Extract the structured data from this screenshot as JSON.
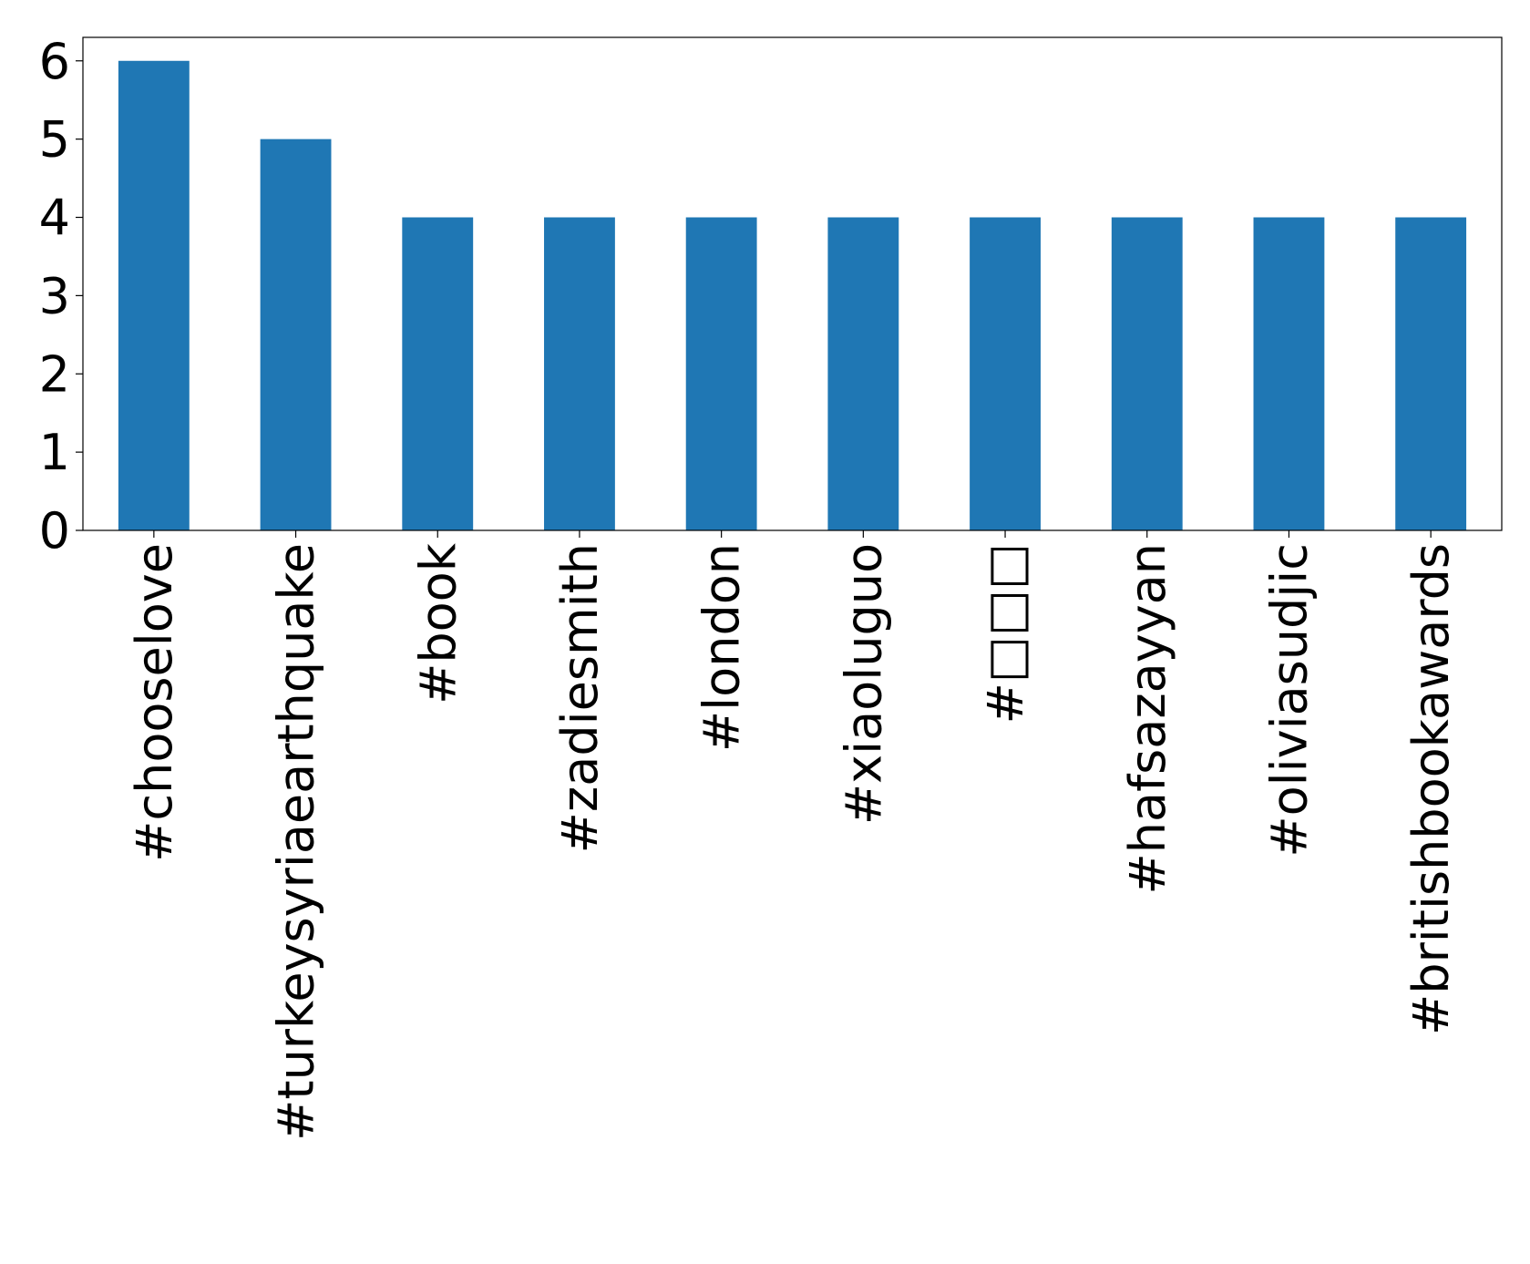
{
  "chart_data": {
    "type": "bar",
    "categories": [
      "#chooselove",
      "#turkeysyriaearthquake",
      "#book",
      "#zadiesmith",
      "#london",
      "#xiaoluguo",
      "#□□□",
      "#hafsazayyan",
      "#oliviasudjic",
      "#britishbookawards"
    ],
    "values": [
      6,
      5,
      4,
      4,
      4,
      4,
      4,
      4,
      4,
      4
    ],
    "color": "#1f77b4",
    "ylim": [
      0,
      6.3
    ],
    "yticks": [
      0,
      1,
      2,
      3,
      4,
      5,
      6
    ],
    "grid": false
  }
}
